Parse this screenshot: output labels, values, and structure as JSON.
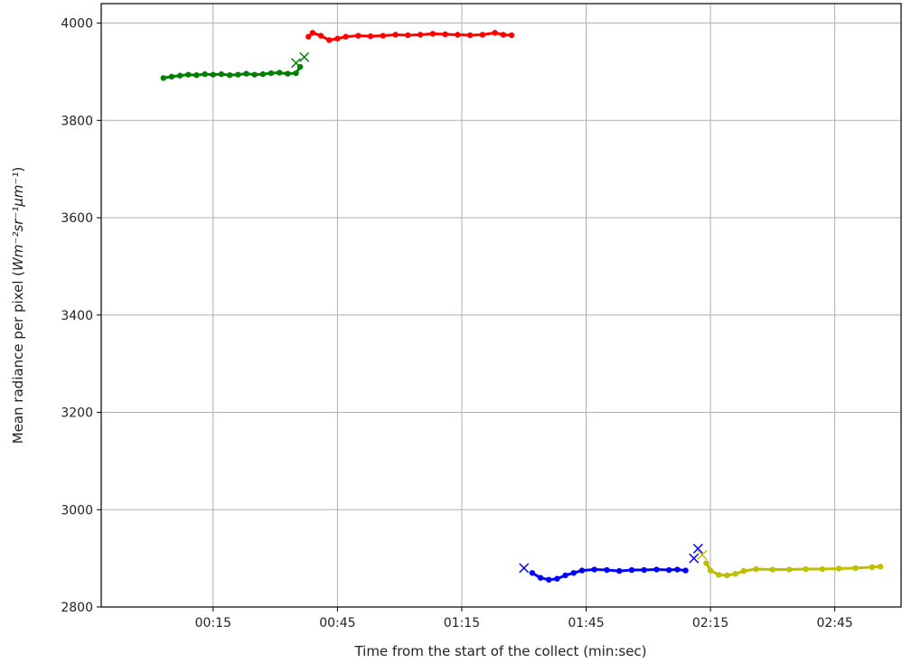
{
  "chart_data": {
    "type": "scatter",
    "xlabel": "Time from the start of the collect (min:sec)",
    "ylabel_main": "Mean radiance per pixel (",
    "ylabel_units": "Wm⁻²sr⁻¹μm⁻¹",
    "ylabel_close": ")",
    "x_unit": "seconds",
    "xlim": [
      -12,
      181
    ],
    "ylim": [
      2800,
      4040
    ],
    "xticks": [
      15,
      45,
      75,
      105,
      135,
      165
    ],
    "xtick_labels": [
      "00:15",
      "00:45",
      "01:15",
      "01:45",
      "02:15",
      "02:45"
    ],
    "yticks": [
      2800,
      3000,
      3200,
      3400,
      3600,
      3800,
      4000
    ],
    "ytick_labels": [
      "2800",
      "3000",
      "3200",
      "3400",
      "3600",
      "3800",
      "4000"
    ],
    "grid": true,
    "series": [
      {
        "color": "#008000",
        "marker": "circle",
        "points": [
          [
            3,
            3887
          ],
          [
            5,
            3890
          ],
          [
            7,
            3892
          ],
          [
            9,
            3894
          ],
          [
            11,
            3893
          ],
          [
            13,
            3895
          ],
          [
            15,
            3894
          ],
          [
            17,
            3895
          ],
          [
            19,
            3893
          ],
          [
            21,
            3894
          ],
          [
            23,
            3896
          ],
          [
            25,
            3894
          ],
          [
            27,
            3895
          ],
          [
            29,
            3897
          ],
          [
            31,
            3898
          ],
          [
            33,
            3896
          ],
          [
            35,
            3897
          ],
          [
            36,
            3910
          ]
        ],
        "x_markers": [
          [
            35,
            3918
          ],
          [
            37,
            3930
          ]
        ]
      },
      {
        "color": "#ff0000",
        "marker": "circle",
        "points": [
          [
            38,
            3972
          ],
          [
            39,
            3980
          ],
          [
            41,
            3974
          ],
          [
            43,
            3965
          ],
          [
            45,
            3968
          ],
          [
            47,
            3972
          ],
          [
            50,
            3974
          ],
          [
            53,
            3973
          ],
          [
            56,
            3974
          ],
          [
            59,
            3976
          ],
          [
            62,
            3975
          ],
          [
            65,
            3976
          ],
          [
            68,
            3978
          ],
          [
            71,
            3977
          ],
          [
            74,
            3976
          ],
          [
            77,
            3975
          ],
          [
            80,
            3976
          ],
          [
            83,
            3980
          ],
          [
            85,
            3976
          ],
          [
            87,
            3975
          ]
        ],
        "x_markers": []
      },
      {
        "color": "#0000ff",
        "marker": "circle",
        "points": [
          [
            92,
            2870
          ],
          [
            94,
            2860
          ],
          [
            96,
            2856
          ],
          [
            98,
            2858
          ],
          [
            100,
            2865
          ],
          [
            102,
            2870
          ],
          [
            104,
            2875
          ],
          [
            107,
            2877
          ],
          [
            110,
            2876
          ],
          [
            113,
            2874
          ],
          [
            116,
            2876
          ],
          [
            119,
            2876
          ],
          [
            122,
            2877
          ],
          [
            125,
            2876
          ],
          [
            127,
            2877
          ],
          [
            129,
            2875
          ]
        ],
        "x_markers": [
          [
            90,
            2880
          ],
          [
            131,
            2900
          ],
          [
            132,
            2920
          ]
        ]
      },
      {
        "color": "#bfbf00",
        "marker": "circle",
        "points": [
          [
            134,
            2890
          ],
          [
            135,
            2875
          ],
          [
            137,
            2866
          ],
          [
            139,
            2865
          ],
          [
            141,
            2868
          ],
          [
            143,
            2874
          ],
          [
            146,
            2878
          ],
          [
            150,
            2877
          ],
          [
            154,
            2877
          ],
          [
            158,
            2878
          ],
          [
            162,
            2878
          ],
          [
            166,
            2879
          ],
          [
            170,
            2880
          ],
          [
            174,
            2882
          ],
          [
            176,
            2883
          ]
        ],
        "x_markers": [
          [
            133,
            2907
          ]
        ]
      }
    ]
  }
}
